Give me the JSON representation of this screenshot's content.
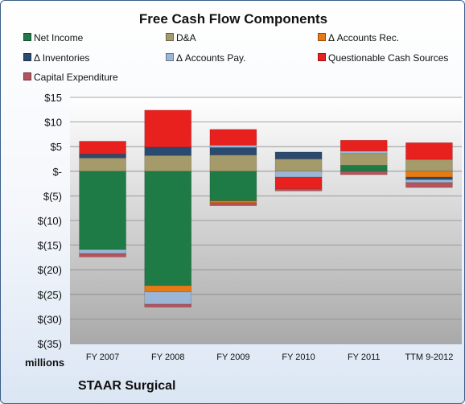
{
  "chart_data": {
    "type": "bar",
    "stacked": true,
    "title": "Free Cash Flow Components",
    "categories": [
      "FY 2007",
      "FY 2008",
      "FY 2009",
      "FY 2010",
      "FY 2011",
      "TTM 9-2012"
    ],
    "ylim": [
      -35,
      15
    ],
    "yticks": [
      15,
      10,
      5,
      0,
      -5,
      -10,
      -15,
      -20,
      -25,
      -30,
      -35
    ],
    "ytick_labels": [
      "$15",
      "$10",
      "$5",
      "$-",
      "$(5)",
      "$(10)",
      "$(15)",
      "$(20)",
      "$(25)",
      "$(30)",
      "$(35)"
    ],
    "units_label": "millions",
    "grid": true,
    "legend_position": "top",
    "series": [
      {
        "name": "Net Income",
        "color": "#1e7b46",
        "values": [
          -15.9,
          -23.2,
          -6.0,
          0.0,
          1.2,
          0.0
        ]
      },
      {
        "name": "D&A",
        "color": "#a59a6a",
        "values": [
          2.7,
          3.2,
          3.3,
          2.5,
          2.4,
          2.4
        ]
      },
      {
        "name": "Δ Accounts Rec.",
        "color": "#e67a14",
        "values": [
          0.0,
          -1.3,
          -0.4,
          0.0,
          0.0,
          -1.2
        ]
      },
      {
        "name": "Δ Inventories",
        "color": "#2b4a6f",
        "values": [
          0.8,
          1.7,
          1.5,
          1.4,
          0.0,
          -0.5
        ]
      },
      {
        "name": "Δ Accounts Pay.",
        "color": "#9cb6d6",
        "values": [
          -0.8,
          -2.5,
          0.5,
          -1.2,
          0.5,
          -0.6
        ]
      },
      {
        "name": "Questionable Cash Sources",
        "color": "#e8201e",
        "values": [
          2.6,
          7.5,
          3.2,
          -2.4,
          2.2,
          3.4
        ]
      },
      {
        "name": "Capital Expenditure",
        "color": "#b5545c",
        "values": [
          -0.7,
          -0.6,
          -0.6,
          -0.4,
          -0.7,
          -1.0
        ]
      }
    ]
  },
  "footer": "STAAR Surgical"
}
